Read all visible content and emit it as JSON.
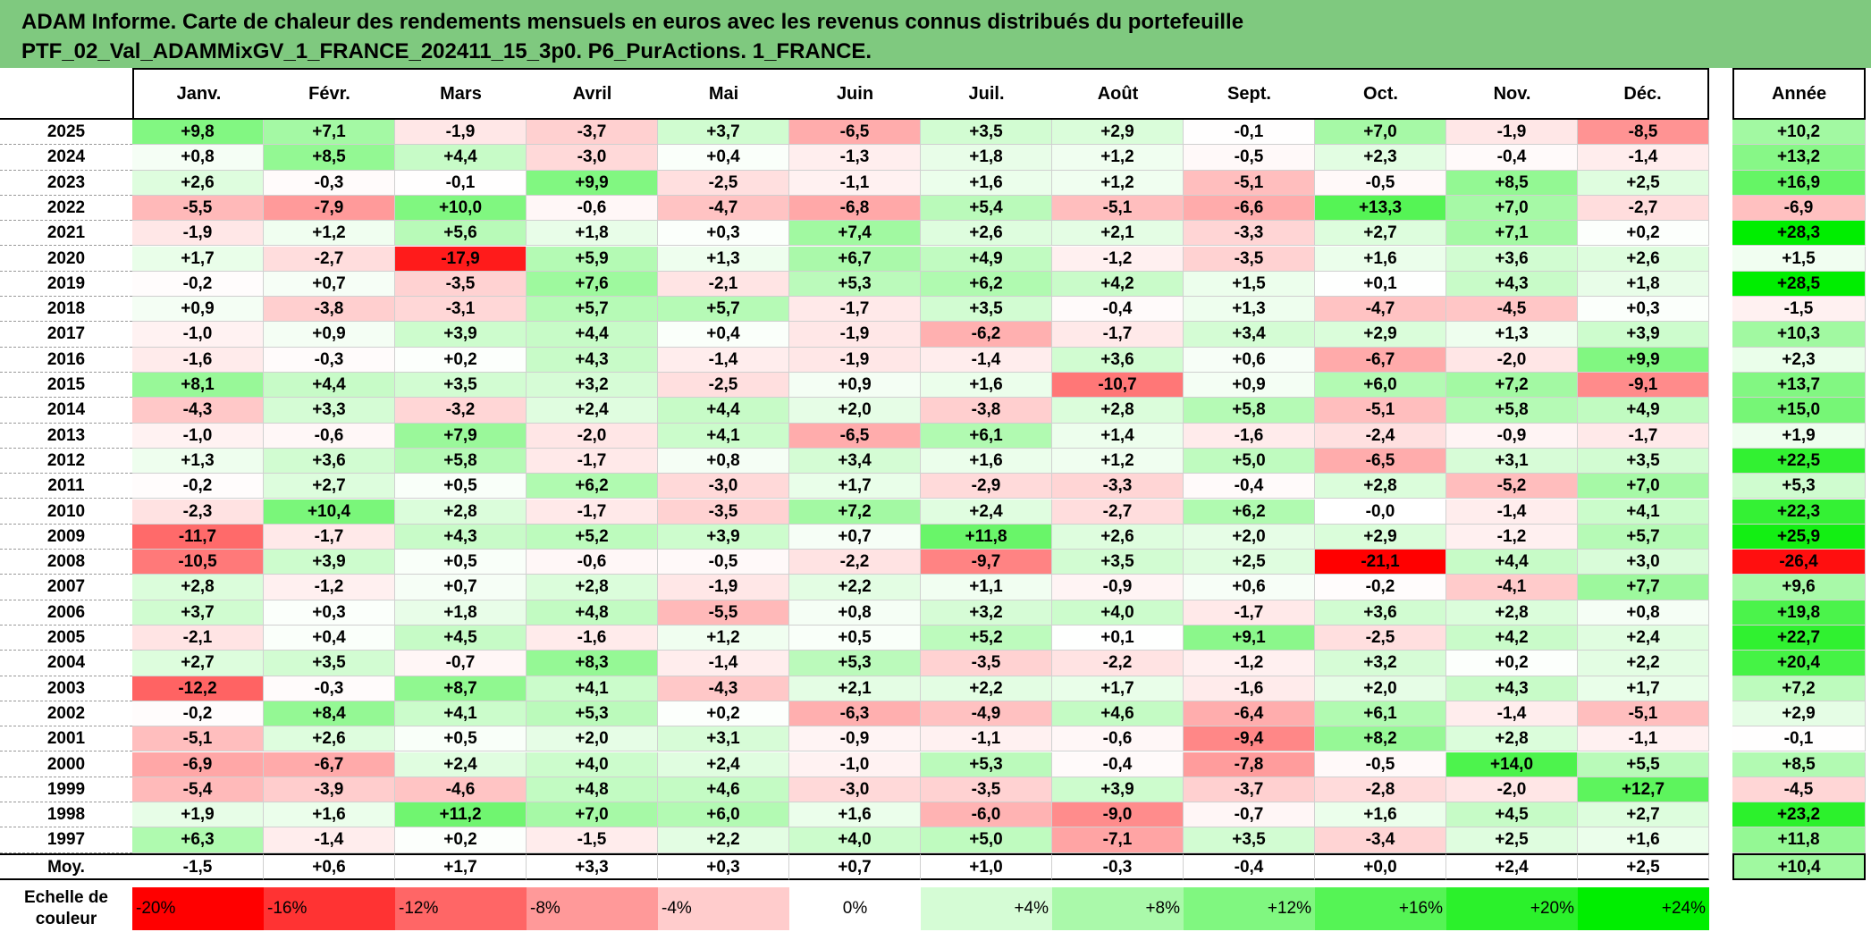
{
  "title": {
    "line1": "ADAM Informe. Carte de chaleur des rendements mensuels en euros avec les revenus connus distribués du portefeuille",
    "line2": "PTF_02_Val_ADAMMixGV_1_FRANCE_202411_15_3p0. P6_PurActions. 1_FRANCE."
  },
  "colors": {
    "title_bg": "#7fc97f",
    "negative_max": "#ff0000",
    "positive_max": "#00ee00",
    "neutral": "#ffffff"
  },
  "chart_data": {
    "type": "heatmap",
    "columns": [
      "Janv.",
      "Févr.",
      "Mars",
      "Avril",
      "Mai",
      "Juin",
      "Juil.",
      "Août",
      "Sept.",
      "Oct.",
      "Nov.",
      "Déc."
    ],
    "year_column": "Année",
    "rows": [
      {
        "year": "2025",
        "values": [
          "+9,8",
          "+7,1",
          "-1,9",
          "-3,7",
          "+3,7",
          "-6,5",
          "+3,5",
          "+2,9",
          "-0,1",
          "+7,0",
          "-1,9",
          "-8,5"
        ],
        "annual": "+10,2"
      },
      {
        "year": "2024",
        "values": [
          "+0,8",
          "+8,5",
          "+4,4",
          "-3,0",
          "+0,4",
          "-1,3",
          "+1,8",
          "+1,2",
          "-0,5",
          "+2,3",
          "-0,4",
          "-1,4"
        ],
        "annual": "+13,2"
      },
      {
        "year": "2023",
        "values": [
          "+2,6",
          "-0,3",
          "-0,1",
          "+9,9",
          "-2,5",
          "-1,1",
          "+1,6",
          "+1,2",
          "-5,1",
          "-0,5",
          "+8,5",
          "+2,5"
        ],
        "annual": "+16,9"
      },
      {
        "year": "2022",
        "values": [
          "-5,5",
          "-7,9",
          "+10,0",
          "-0,6",
          "-4,7",
          "-6,8",
          "+5,4",
          "-5,1",
          "-6,6",
          "+13,3",
          "+7,0",
          "-2,7"
        ],
        "annual": "-6,9"
      },
      {
        "year": "2021",
        "values": [
          "-1,9",
          "+1,2",
          "+5,6",
          "+1,8",
          "+0,3",
          "+7,4",
          "+2,6",
          "+2,1",
          "-3,3",
          "+2,7",
          "+7,1",
          "+0,2"
        ],
        "annual": "+28,3"
      },
      {
        "year": "2020",
        "values": [
          "+1,7",
          "-2,7",
          "-17,9",
          "+5,9",
          "+1,3",
          "+6,7",
          "+4,9",
          "-1,2",
          "-3,5",
          "+1,6",
          "+3,6",
          "+2,6"
        ],
        "annual": "+1,5"
      },
      {
        "year": "2019",
        "values": [
          "-0,2",
          "+0,7",
          "-3,5",
          "+7,6",
          "-2,1",
          "+5,3",
          "+6,2",
          "+4,2",
          "+1,5",
          "+0,1",
          "+4,3",
          "+1,8"
        ],
        "annual": "+28,5"
      },
      {
        "year": "2018",
        "values": [
          "+0,9",
          "-3,8",
          "-3,1",
          "+5,7",
          "+5,7",
          "-1,7",
          "+3,5",
          "-0,4",
          "+1,3",
          "-4,7",
          "-4,5",
          "+0,3"
        ],
        "annual": "-1,5"
      },
      {
        "year": "2017",
        "values": [
          "-1,0",
          "+0,9",
          "+3,9",
          "+4,4",
          "+0,4",
          "-1,9",
          "-6,2",
          "-1,7",
          "+3,4",
          "+2,9",
          "+1,3",
          "+3,9"
        ],
        "annual": "+10,3"
      },
      {
        "year": "2016",
        "values": [
          "-1,6",
          "-0,3",
          "+0,2",
          "+4,3",
          "-1,4",
          "-1,9",
          "-1,4",
          "+3,6",
          "+0,6",
          "-6,7",
          "-2,0",
          "+9,9"
        ],
        "annual": "+2,3"
      },
      {
        "year": "2015",
        "values": [
          "+8,1",
          "+4,4",
          "+3,5",
          "+3,2",
          "-2,5",
          "+0,9",
          "+1,6",
          "-10,7",
          "+0,9",
          "+6,0",
          "+7,2",
          "-9,1"
        ],
        "annual": "+13,7"
      },
      {
        "year": "2014",
        "values": [
          "-4,3",
          "+3,3",
          "-3,2",
          "+2,4",
          "+4,4",
          "+2,0",
          "-3,8",
          "+2,8",
          "+5,8",
          "-5,1",
          "+5,8",
          "+4,9"
        ],
        "annual": "+15,0"
      },
      {
        "year": "2013",
        "values": [
          "-1,0",
          "-0,6",
          "+7,9",
          "-2,0",
          "+4,1",
          "-6,5",
          "+6,1",
          "+1,4",
          "-1,6",
          "-2,4",
          "-0,9",
          "-1,7"
        ],
        "annual": "+1,9"
      },
      {
        "year": "2012",
        "values": [
          "+1,3",
          "+3,6",
          "+5,8",
          "-1,7",
          "+0,8",
          "+3,4",
          "+1,6",
          "+1,2",
          "+5,0",
          "-6,5",
          "+3,1",
          "+3,5"
        ],
        "annual": "+22,5"
      },
      {
        "year": "2011",
        "values": [
          "-0,2",
          "+2,7",
          "+0,5",
          "+6,2",
          "-3,0",
          "+1,7",
          "-2,9",
          "-3,3",
          "-0,4",
          "+2,8",
          "-5,2",
          "+7,0"
        ],
        "annual": "+5,3"
      },
      {
        "year": "2010",
        "values": [
          "-2,3",
          "+10,4",
          "+2,8",
          "-1,7",
          "-3,5",
          "+7,2",
          "+2,4",
          "-2,7",
          "+6,2",
          "-0,0",
          "-1,4",
          "+4,1"
        ],
        "annual": "+22,3"
      },
      {
        "year": "2009",
        "values": [
          "-11,7",
          "-1,7",
          "+4,3",
          "+5,2",
          "+3,9",
          "+0,7",
          "+11,8",
          "+2,6",
          "+2,0",
          "+2,9",
          "-1,2",
          "+5,7"
        ],
        "annual": "+25,9"
      },
      {
        "year": "2008",
        "values": [
          "-10,5",
          "+3,9",
          "+0,5",
          "-0,6",
          "-0,5",
          "-2,2",
          "-9,7",
          "+3,5",
          "+2,5",
          "-21,1",
          "+4,4",
          "+3,0"
        ],
        "annual": "-26,4"
      },
      {
        "year": "2007",
        "values": [
          "+2,8",
          "-1,2",
          "+0,7",
          "+2,8",
          "-1,9",
          "+2,2",
          "+1,1",
          "-0,9",
          "+0,6",
          "-0,2",
          "-4,1",
          "+7,7"
        ],
        "annual": "+9,6"
      },
      {
        "year": "2006",
        "values": [
          "+3,7",
          "+0,3",
          "+1,8",
          "+4,8",
          "-5,5",
          "+0,8",
          "+3,2",
          "+4,0",
          "-1,7",
          "+3,6",
          "+2,8",
          "+0,8"
        ],
        "annual": "+19,8"
      },
      {
        "year": "2005",
        "values": [
          "-2,1",
          "+0,4",
          "+4,5",
          "-1,6",
          "+1,2",
          "+0,5",
          "+5,2",
          "+0,1",
          "+9,1",
          "-2,5",
          "+4,2",
          "+2,4"
        ],
        "annual": "+22,7"
      },
      {
        "year": "2004",
        "values": [
          "+2,7",
          "+3,5",
          "-0,7",
          "+8,3",
          "-1,4",
          "+5,3",
          "-3,5",
          "-2,2",
          "-1,2",
          "+3,2",
          "+0,2",
          "+2,2"
        ],
        "annual": "+20,4"
      },
      {
        "year": "2003",
        "values": [
          "-12,2",
          "-0,3",
          "+8,7",
          "+4,1",
          "-4,3",
          "+2,1",
          "+2,2",
          "+1,7",
          "-1,6",
          "+2,0",
          "+4,3",
          "+1,7"
        ],
        "annual": "+7,2"
      },
      {
        "year": "2002",
        "values": [
          "-0,2",
          "+8,4",
          "+4,1",
          "+5,3",
          "+0,2",
          "-6,3",
          "-4,9",
          "+4,6",
          "-6,4",
          "+6,1",
          "-1,4",
          "-5,1"
        ],
        "annual": "+2,9"
      },
      {
        "year": "2001",
        "values": [
          "-5,1",
          "+2,6",
          "+0,5",
          "+2,0",
          "+3,1",
          "-0,9",
          "-1,1",
          "-0,6",
          "-9,4",
          "+8,2",
          "+2,8",
          "-1,1"
        ],
        "annual": "-0,1"
      },
      {
        "year": "2000",
        "values": [
          "-6,9",
          "-6,7",
          "+2,4",
          "+4,0",
          "+2,4",
          "-1,0",
          "+5,3",
          "-0,4",
          "-7,8",
          "-0,5",
          "+14,0",
          "+5,5"
        ],
        "annual": "+8,5"
      },
      {
        "year": "1999",
        "values": [
          "-5,4",
          "-3,9",
          "-4,6",
          "+4,8",
          "+4,6",
          "-3,0",
          "-3,5",
          "+3,9",
          "-3,7",
          "-2,8",
          "-2,0",
          "+12,7"
        ],
        "annual": "-4,5"
      },
      {
        "year": "1998",
        "values": [
          "+1,9",
          "+1,6",
          "+11,2",
          "+7,0",
          "+6,0",
          "+1,6",
          "-6,0",
          "-9,0",
          "-0,7",
          "+1,6",
          "+4,5",
          "+2,7"
        ],
        "annual": "+23,2"
      },
      {
        "year": "1997",
        "values": [
          "+6,3",
          "-1,4",
          "+0,2",
          "-1,5",
          "+2,2",
          "+4,0",
          "+5,0",
          "-7,1",
          "+3,5",
          "-3,4",
          "+2,5",
          "+1,6"
        ],
        "annual": "+11,8"
      }
    ],
    "average": {
      "label": "Moy.",
      "values": [
        "-1,5",
        "+0,6",
        "+1,7",
        "+3,3",
        "+0,3",
        "+0,7",
        "+1,0",
        "-0,3",
        "-0,4",
        "+0,0",
        "+2,4",
        "+2,5"
      ],
      "annual": "+10,4"
    },
    "legend": {
      "label_line1": "Echelle de",
      "label_line2": "couleur",
      "stops": [
        "-20%",
        "-16%",
        "-12%",
        "-8%",
        "-4%",
        "0%",
        "+4%",
        "+8%",
        "+12%",
        "+16%",
        "+20%",
        "+24%"
      ]
    }
  }
}
